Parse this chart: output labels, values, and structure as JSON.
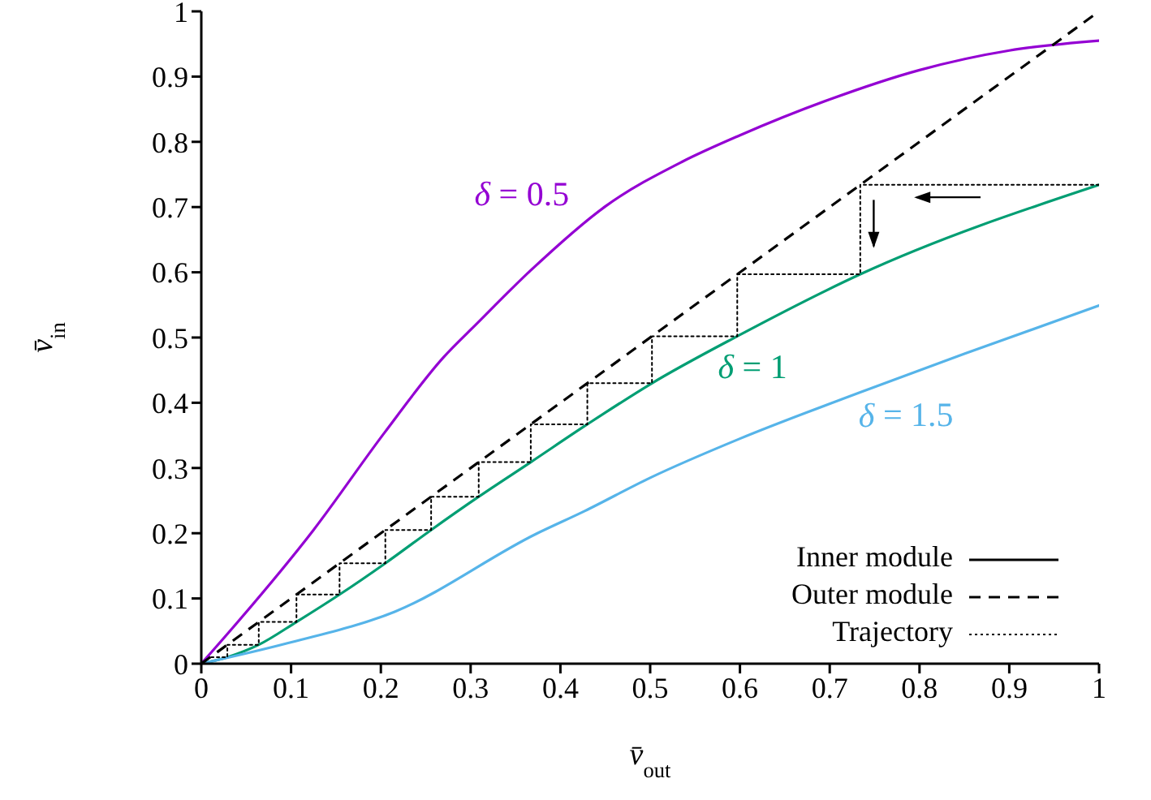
{
  "chart_data": {
    "type": "line",
    "xlabel": "v̄$_{out}$",
    "ylabel": "v̄$_{in}$",
    "xlim": [
      0,
      1
    ],
    "ylim": [
      0,
      1
    ],
    "xticks": [
      0,
      0.1,
      0.2,
      0.3,
      0.4,
      0.5,
      0.6,
      0.7,
      0.8,
      0.9,
      1
    ],
    "yticks": [
      0,
      0.1,
      0.2,
      0.3,
      0.4,
      0.5,
      0.6,
      0.7,
      0.8,
      0.9,
      1
    ],
    "legend": "bottom right",
    "marker": "none",
    "series": [
      {
        "name": "δ = 0.5",
        "color": "#9400d3",
        "line_style": "solid",
        "x": [
          0,
          0.035,
          0.125,
          0.204,
          0.27,
          0.306,
          0.367,
          0.451,
          0.535,
          0.6,
          0.7,
          0.8,
          0.9,
          1
        ],
        "values": [
          0,
          0.055,
          0.205,
          0.354,
          0.47,
          0.52,
          0.603,
          0.702,
          0.769,
          0.81,
          0.865,
          0.91,
          0.94,
          0.955
        ]
      },
      {
        "name": "δ = 1",
        "color": "#009e73",
        "line_style": "solid",
        "x": [
          0,
          0.029,
          0.064,
          0.106,
          0.154,
          0.205,
          0.256,
          0.309,
          0.367,
          0.43,
          0.502,
          0.597,
          0.734,
          1
        ],
        "values": [
          0,
          0.01,
          0.029,
          0.064,
          0.106,
          0.154,
          0.205,
          0.256,
          0.309,
          0.367,
          0.43,
          0.502,
          0.597,
          0.734
        ]
      },
      {
        "name": "δ = 1.5",
        "color": "#56b4e9",
        "line_style": "solid",
        "x": [
          0,
          0.095,
          0.216,
          0.373,
          0.427,
          0.5,
          0.6,
          0.734,
          0.85,
          1
        ],
        "values": [
          0,
          0.031,
          0.08,
          0.199,
          0.234,
          0.285,
          0.345,
          0.416,
          0.475,
          0.549
        ]
      },
      {
        "name": "Outer module",
        "color": "#000000",
        "line_style": "dashed",
        "x": [
          0,
          1
        ],
        "values": [
          0,
          1
        ]
      },
      {
        "name": "Trajectory",
        "color": "#000000",
        "line_style": "dotted",
        "x": [
          1,
          0.734,
          0.734,
          0.597,
          0.597,
          0.502,
          0.502,
          0.43,
          0.43,
          0.367,
          0.367,
          0.309,
          0.309,
          0.256,
          0.256,
          0.205,
          0.205,
          0.154,
          0.154,
          0.106,
          0.106,
          0.064,
          0.064,
          0.029,
          0.029,
          0.01
        ],
        "values": [
          0.734,
          0.734,
          0.597,
          0.597,
          0.502,
          0.502,
          0.43,
          0.43,
          0.367,
          0.367,
          0.309,
          0.309,
          0.256,
          0.256,
          0.205,
          0.205,
          0.154,
          0.154,
          0.106,
          0.106,
          0.064,
          0.064,
          0.029,
          0.029,
          0.01,
          0.01
        ]
      }
    ],
    "annotations": [
      "Inner module"
    ]
  }
}
